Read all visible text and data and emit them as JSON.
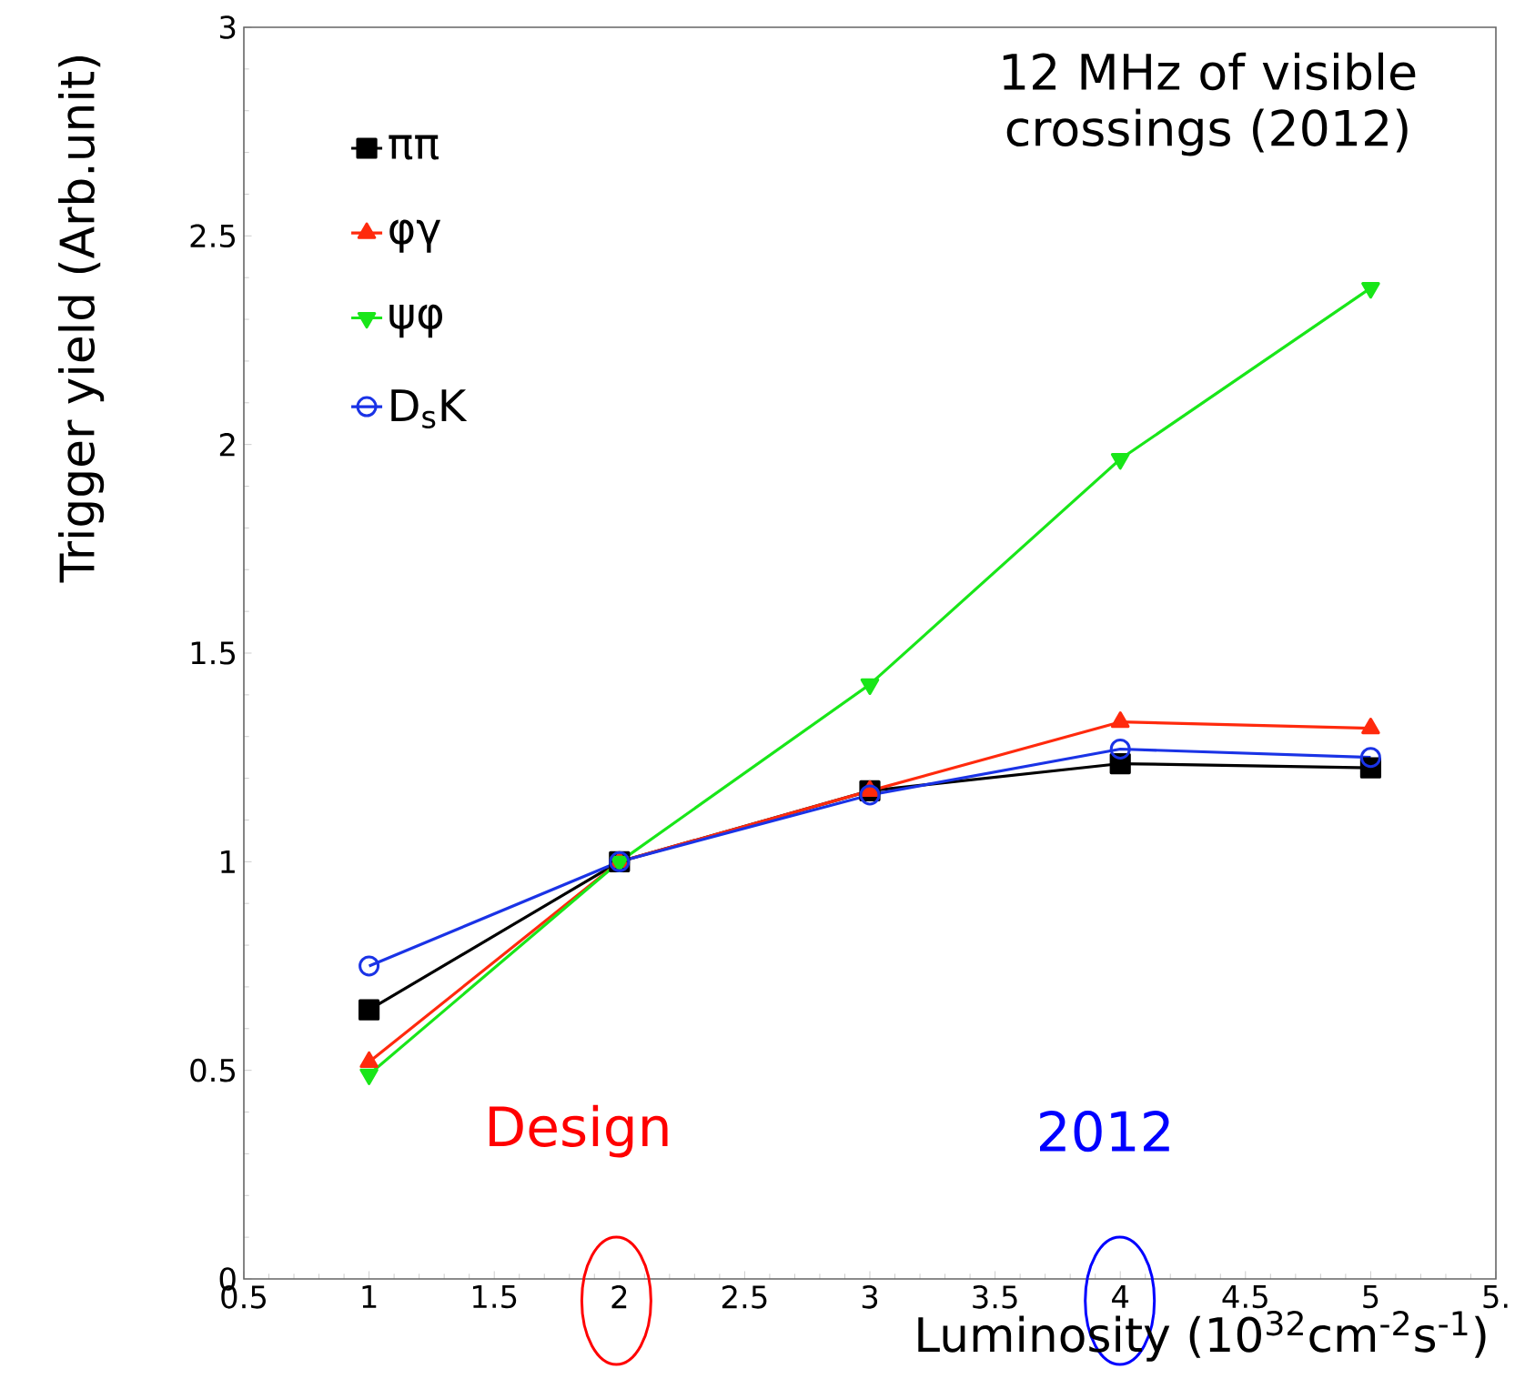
{
  "chart_data": {
    "type": "line",
    "xlabel": "Luminosity (10$^{32}$cm$^{-2}$s$^{-1}$)",
    "ylabel": "Trigger yield (Arb.unit)",
    "x": [
      1,
      2,
      3,
      4,
      5
    ],
    "series": [
      {
        "name": "ππ",
        "color": "#000000",
        "marker": "square",
        "values": [
          0.645,
          1.0,
          1.17,
          1.235,
          1.225
        ]
      },
      {
        "name": "φγ",
        "color": "#ff2a0d",
        "marker": "triangle",
        "values": [
          0.52,
          1.0,
          1.17,
          1.335,
          1.32
        ]
      },
      {
        "name": "ψφ",
        "color": "#19e619",
        "marker": "triangle-down",
        "values": [
          0.49,
          1.0,
          1.425,
          1.965,
          2.375
        ]
      },
      {
        "name": "D$_{s}$K",
        "color": "#1a33e6",
        "marker": "circle",
        "values": [
          0.75,
          1.0,
          1.16,
          1.27,
          1.25
        ]
      }
    ],
    "xlim": [
      0.5,
      5.5
    ],
    "ylim": [
      0,
      3
    ],
    "xticks": [
      0.5,
      1,
      1.5,
      2,
      2.5,
      3,
      3.5,
      4,
      4.5,
      5,
      {
        "value": 5.5,
        "label": "5."
      }
    ],
    "yticks": [
      0,
      0.5,
      1,
      1.5,
      2,
      2.5,
      3
    ],
    "legend": "top left",
    "grid": false,
    "annotations": [
      "12 MHz of visible crossings (2012)",
      "Design",
      "2012"
    ]
  }
}
